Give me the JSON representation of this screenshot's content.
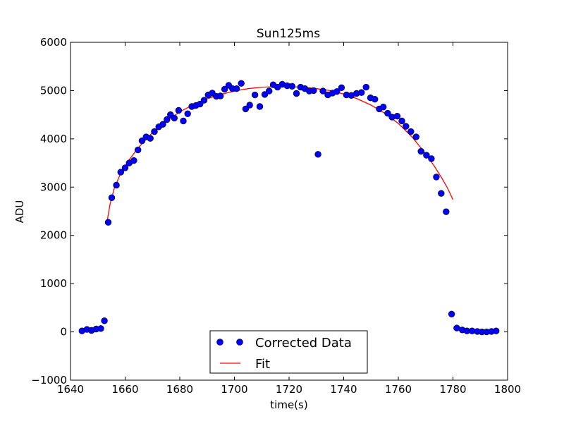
{
  "chart_data": {
    "type": "scatter",
    "title": "Sun125ms",
    "xlabel": "time(s)",
    "ylabel": "ADU",
    "xlim": [
      1640,
      1800
    ],
    "ylim": [
      -1000,
      6000
    ],
    "xticks": [
      "1640",
      "1660",
      "1680",
      "1700",
      "1720",
      "1740",
      "1760",
      "1780",
      "1800"
    ],
    "yticks": [
      "−1000",
      "0",
      "1000",
      "2000",
      "3000",
      "4000",
      "5000",
      "6000"
    ],
    "grid": false,
    "legend_position": "lower-center",
    "series": [
      {
        "name": "Corrected Data",
        "style": "markers",
        "color": "#0000ff",
        "x": [
          1644.2,
          1646.0,
          1647.7,
          1649.4,
          1651.1,
          1652.4,
          1653.8,
          1655.1,
          1656.8,
          1658.4,
          1660.0,
          1661.5,
          1663.2,
          1664.7,
          1666.2,
          1667.7,
          1669.2,
          1670.7,
          1672.3,
          1673.8,
          1675.3,
          1676.6,
          1678.0,
          1679.6,
          1681.3,
          1682.9,
          1684.4,
          1685.9,
          1687.4,
          1688.9,
          1690.4,
          1691.9,
          1693.4,
          1694.9,
          1696.4,
          1697.9,
          1699.3,
          1700.8,
          1702.5,
          1704.1,
          1705.6,
          1707.5,
          1709.3,
          1711.1,
          1712.7,
          1714.2,
          1715.8,
          1717.5,
          1719.3,
          1721.1,
          1722.7,
          1724.2,
          1725.8,
          1727.4,
          1729.0,
          1730.6,
          1732.4,
          1734.2,
          1735.9,
          1737.5,
          1739.2,
          1741.0,
          1742.8,
          1744.7,
          1746.5,
          1748.2,
          1749.8,
          1751.4,
          1753.0,
          1754.5,
          1756.1,
          1757.7,
          1759.6,
          1761.3,
          1762.8,
          1764.6,
          1766.5,
          1768.3,
          1770.3,
          1772.1,
          1773.9,
          1775.7,
          1777.5,
          1779.5,
          1781.4,
          1783.4,
          1785.1,
          1787.0,
          1788.9,
          1790.6,
          1792.3,
          1794.1,
          1795.8
        ],
        "y": [
          20,
          50,
          30,
          60,
          70,
          230,
          2270,
          2780,
          3040,
          3310,
          3400,
          3500,
          3550,
          3770,
          3960,
          4040,
          4010,
          4150,
          4250,
          4300,
          4400,
          4500,
          4430,
          4590,
          4370,
          4520,
          4670,
          4690,
          4720,
          4800,
          4910,
          4950,
          4880,
          4890,
          5030,
          5110,
          5040,
          5040,
          5150,
          4620,
          4700,
          4910,
          4670,
          4920,
          4990,
          5120,
          5070,
          5130,
          5100,
          5090,
          4940,
          5070,
          5040,
          4990,
          5000,
          3680,
          4990,
          4910,
          4950,
          4980,
          5060,
          4910,
          4900,
          4940,
          4960,
          5070,
          4850,
          4820,
          4620,
          4660,
          4530,
          4450,
          4470,
          4370,
          4260,
          4150,
          4040,
          3740,
          3660,
          3590,
          3210,
          2870,
          2490,
          370,
          80,
          40,
          20,
          20,
          10,
          0,
          0,
          10,
          20
        ]
      },
      {
        "name": "Fit",
        "style": "line",
        "color": "#ff0000",
        "x": [
          1653.5,
          1654.5,
          1656,
          1658,
          1661,
          1665,
          1670,
          1675,
          1680,
          1685,
          1690,
          1695,
          1700,
          1705,
          1710,
          1715,
          1720,
          1725,
          1730,
          1735,
          1740,
          1745,
          1750,
          1755,
          1760,
          1765,
          1770,
          1773,
          1776,
          1778,
          1780
        ],
        "y": [
          2320,
          2650,
          2970,
          3240,
          3530,
          3830,
          4130,
          4360,
          4560,
          4710,
          4830,
          4920,
          4990,
          5040,
          5070,
          5080,
          5080,
          5070,
          5040,
          5000,
          4930,
          4830,
          4700,
          4530,
          4320,
          4040,
          3690,
          3450,
          3180,
          2980,
          2740
        ]
      }
    ]
  }
}
